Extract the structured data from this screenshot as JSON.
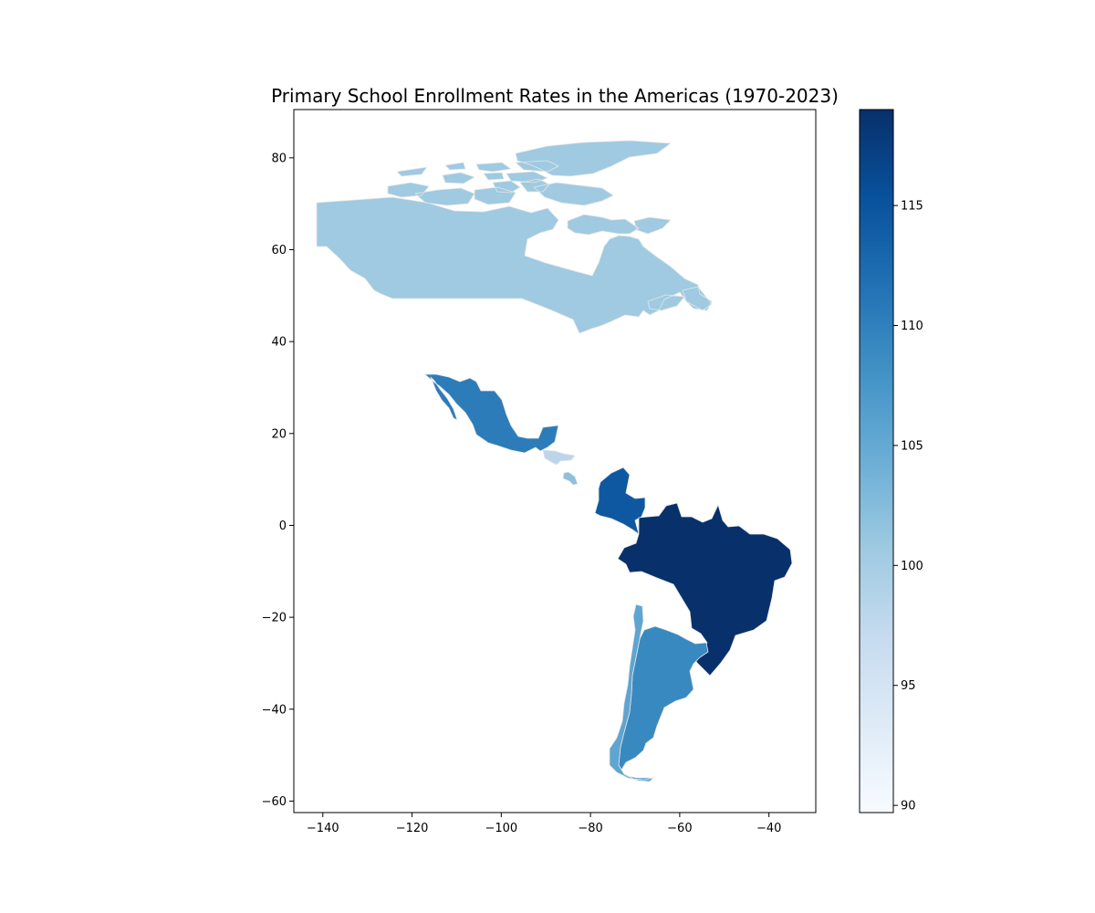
{
  "chart_data": {
    "type": "choropleth",
    "title": "Primary School Enrollment Rates in the Americas (1970-2023)",
    "xlim": [
      -146.5,
      -29.5
    ],
    "ylim": [
      -62.5,
      90.5
    ],
    "xticks": [
      -140,
      -120,
      -100,
      -80,
      -60,
      -40
    ],
    "xtick_labels": [
      "−140",
      "−120",
      "−100",
      "−80",
      "−60",
      "−40"
    ],
    "yticks": [
      -60,
      -40,
      -20,
      0,
      20,
      40,
      60,
      80
    ],
    "ytick_labels": [
      "−60",
      "−40",
      "−20",
      "0",
      "20",
      "40",
      "60",
      "80"
    ],
    "colormap": "Blues",
    "colorbar": {
      "range": [
        89.7,
        119.0
      ],
      "ticks": [
        90,
        95,
        100,
        105,
        110,
        115
      ],
      "tick_labels": [
        "90",
        "95",
        "100",
        "105",
        "110",
        "115"
      ]
    },
    "regions": [
      {
        "id": "canada",
        "value": 100.6
      },
      {
        "id": "mexico",
        "value": 110.5
      },
      {
        "id": "honduras",
        "value": 98.0
      },
      {
        "id": "nicaragua",
        "value": 102.0
      },
      {
        "id": "colombia",
        "value": 114.5
      },
      {
        "id": "brazil",
        "value": 119.0
      },
      {
        "id": "argentina",
        "value": 109.0
      },
      {
        "id": "chile",
        "value": 105.5
      }
    ]
  }
}
